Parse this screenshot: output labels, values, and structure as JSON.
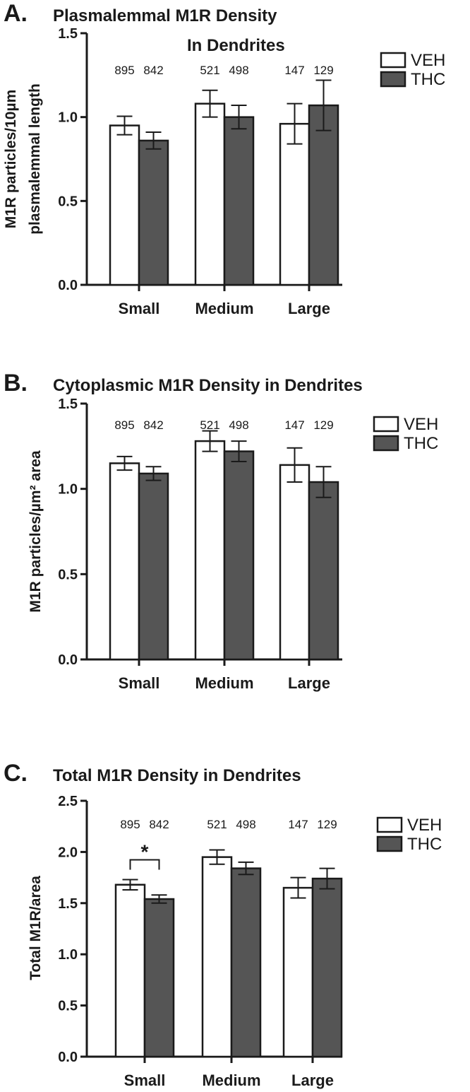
{
  "colors": {
    "veh": "#ffffff",
    "thc": "#555555",
    "stroke": "#1a1a1a"
  },
  "legend": {
    "veh_label": "VEH",
    "thc_label": "THC"
  },
  "chart_data": [
    {
      "id": "A",
      "type": "bar",
      "letter": "A.",
      "title_lines": [
        "Plasmalemmal M1R Density",
        "In  Dendrites"
      ],
      "ylabel_lines": [
        "M1R particles/10µm",
        "plasmalemmal length"
      ],
      "categories": [
        "Small",
        "Medium",
        "Large"
      ],
      "ylim": [
        0,
        1.5
      ],
      "yticks": [
        "0.0",
        "0.5",
        "1.0",
        "1.5"
      ],
      "n_labels": [
        [
          "895",
          "842"
        ],
        [
          "521",
          "498"
        ],
        [
          "147",
          "129"
        ]
      ],
      "series": [
        {
          "name": "VEH",
          "values": [
            0.95,
            1.08,
            0.96
          ],
          "errors": [
            0.055,
            0.08,
            0.12
          ]
        },
        {
          "name": "THC",
          "values": [
            0.86,
            1.0,
            1.07
          ],
          "errors": [
            0.05,
            0.07,
            0.15
          ]
        }
      ]
    },
    {
      "id": "B",
      "type": "bar",
      "letter": "B.",
      "title_lines": [
        "Cytoplasmic M1R Density in Dendrites"
      ],
      "ylabel_lines": [
        "M1R particles/µm² area"
      ],
      "categories": [
        "Small",
        "Medium",
        "Large"
      ],
      "ylim": [
        0,
        1.5
      ],
      "yticks": [
        "0.0",
        "0.5",
        "1.0",
        "1.5"
      ],
      "n_labels": [
        [
          "895",
          "842"
        ],
        [
          "521",
          "498"
        ],
        [
          "147",
          "129"
        ]
      ],
      "series": [
        {
          "name": "VEH",
          "values": [
            1.15,
            1.28,
            1.14
          ],
          "errors": [
            0.04,
            0.06,
            0.1
          ]
        },
        {
          "name": "THC",
          "values": [
            1.09,
            1.22,
            1.04
          ],
          "errors": [
            0.04,
            0.06,
            0.09
          ]
        }
      ]
    },
    {
      "id": "C",
      "type": "bar",
      "letter": "C.",
      "title_lines": [
        "Total M1R Density in Dendrites"
      ],
      "ylabel_lines": [
        "Total M1R/area"
      ],
      "categories": [
        "Small",
        "Medium",
        "Large"
      ],
      "ylim": [
        0,
        2.5
      ],
      "yticks": [
        "0.0",
        "0.5",
        "1.0",
        "1.5",
        "2.0",
        "2.5"
      ],
      "n_labels": [
        [
          "895",
          "842"
        ],
        [
          "521",
          "498"
        ],
        [
          "147",
          "129"
        ]
      ],
      "significance": {
        "marker": "*",
        "category": "Small"
      },
      "series": [
        {
          "name": "VEH",
          "values": [
            1.68,
            1.95,
            1.65
          ],
          "errors": [
            0.05,
            0.07,
            0.1
          ]
        },
        {
          "name": "THC",
          "values": [
            1.54,
            1.84,
            1.74
          ],
          "errors": [
            0.04,
            0.06,
            0.1
          ]
        }
      ]
    }
  ]
}
